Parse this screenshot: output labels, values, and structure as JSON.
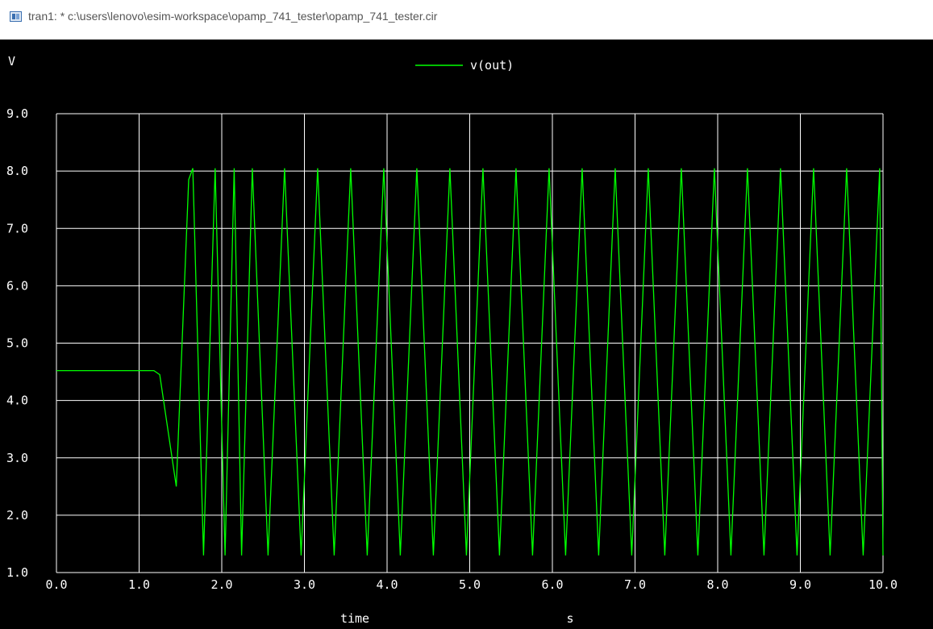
{
  "window": {
    "title": "tran1: * c:\\users\\lenovo\\esim-workspace\\opamp_741_tester\\opamp_741_tester.cir",
    "icon": "ngspice-plot-icon"
  },
  "colors": {
    "background": "#000000",
    "grid": "#ffffff",
    "text": "#ffffff",
    "trace": "#00ff00"
  },
  "chart_data": {
    "type": "line",
    "ylabel": "V",
    "xlabel": "time",
    "xunit": "s",
    "xlim": [
      0.0,
      10.0
    ],
    "ylim": [
      1.0,
      9.0
    ],
    "xticks": [
      "0.0",
      "1.0",
      "2.0",
      "3.0",
      "4.0",
      "5.0",
      "6.0",
      "7.0",
      "8.0",
      "9.0",
      "10.0"
    ],
    "yticks": [
      "1.0",
      "2.0",
      "3.0",
      "4.0",
      "5.0",
      "6.0",
      "7.0",
      "8.0",
      "9.0"
    ],
    "grid": true,
    "legend_position": "top-center",
    "series": [
      {
        "name": "v(out)",
        "x": [
          0.0,
          1.0,
          1.18,
          1.25,
          1.45,
          1.6,
          1.65,
          1.78,
          1.92,
          2.04,
          2.15,
          2.24,
          2.37,
          2.56,
          2.76,
          2.96,
          3.16,
          3.36,
          3.56,
          3.76,
          3.96,
          4.16,
          4.36,
          4.56,
          4.76,
          4.96,
          5.16,
          5.36,
          5.56,
          5.76,
          5.96,
          6.16,
          6.36,
          6.56,
          6.76,
          6.96,
          7.16,
          7.36,
          7.56,
          7.76,
          7.96,
          8.16,
          8.36,
          8.56,
          8.76,
          8.96,
          9.16,
          9.36,
          9.56,
          9.76,
          9.96,
          10.0
        ],
        "y": [
          4.52,
          4.52,
          4.52,
          4.45,
          2.5,
          7.85,
          8.05,
          1.3,
          8.05,
          1.3,
          8.05,
          1.3,
          8.05,
          1.3,
          8.05,
          1.3,
          8.05,
          1.3,
          8.05,
          1.3,
          8.05,
          1.3,
          8.05,
          1.3,
          8.05,
          1.3,
          8.05,
          1.3,
          8.05,
          1.3,
          8.05,
          1.3,
          8.05,
          1.3,
          8.05,
          1.3,
          8.05,
          1.3,
          8.05,
          1.3,
          8.05,
          1.3,
          8.05,
          1.3,
          8.05,
          1.3,
          8.05,
          1.3,
          8.05,
          1.3,
          8.05,
          1.3
        ]
      }
    ]
  }
}
